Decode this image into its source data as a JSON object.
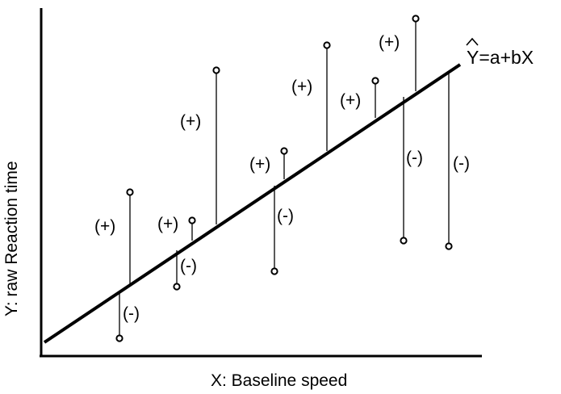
{
  "diagram": {
    "x_axis_label": "X: Baseline speed",
    "y_axis_label": "Y: raw Reaction time",
    "equation": "Y=a+bX",
    "equation_hat_symbol": "^",
    "positive_marker": "(+)",
    "negative_marker": "(-)",
    "colors": {
      "line": "#000000",
      "point_fill": "#ffffff",
      "background": "#ffffff"
    },
    "residuals": [
      {
        "sign": "positive",
        "label": "(+)"
      },
      {
        "sign": "negative",
        "label": "(-)"
      },
      {
        "sign": "positive",
        "label": "(+)"
      },
      {
        "sign": "negative",
        "label": "(-)"
      },
      {
        "sign": "positive",
        "label": "(+)"
      },
      {
        "sign": "positive",
        "label": "(+)"
      },
      {
        "sign": "negative",
        "label": "(-)"
      },
      {
        "sign": "positive",
        "label": "(+)"
      },
      {
        "sign": "positive",
        "label": "(+)"
      },
      {
        "sign": "positive",
        "label": "(+)"
      },
      {
        "sign": "negative",
        "label": "(-)"
      },
      {
        "sign": "negative",
        "label": "(-)"
      }
    ]
  }
}
